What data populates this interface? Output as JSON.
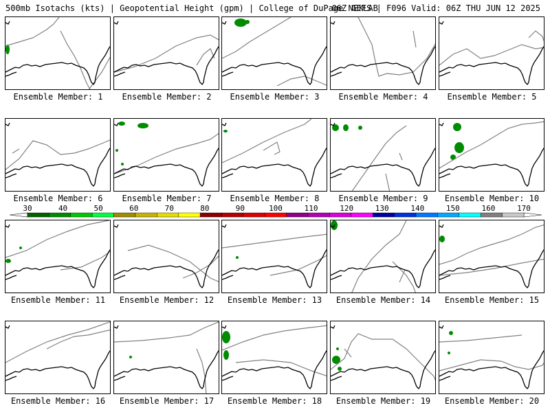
{
  "header": {
    "title": "500mb Isotachs (kts) | Geopotential Height (gpm) | College of DuPage NEXLAB",
    "run_info": "06Z GEFS | F096 Valid: 06Z THU JUN 12 2025"
  },
  "panel_label_prefix": "Ensemble Member: ",
  "members": [
    {
      "id": 1,
      "label": "Ensemble Member: 1"
    },
    {
      "id": 2,
      "label": "Ensemble Member: 2"
    },
    {
      "id": 3,
      "label": "Ensemble Member: 3"
    },
    {
      "id": 4,
      "label": "Ensemble Member: 4"
    },
    {
      "id": 5,
      "label": "Ensemble Member: 5"
    },
    {
      "id": 6,
      "label": "Ensemble Member: 6"
    },
    {
      "id": 7,
      "label": "Ensemble Member: 7"
    },
    {
      "id": 8,
      "label": "Ensemble Member: 8"
    },
    {
      "id": 9,
      "label": "Ensemble Member: 9"
    },
    {
      "id": 10,
      "label": "Ensemble Member: 10"
    },
    {
      "id": 11,
      "label": "Ensemble Member: 11"
    },
    {
      "id": 12,
      "label": "Ensemble Member: 12"
    },
    {
      "id": 13,
      "label": "Ensemble Member: 13"
    },
    {
      "id": 14,
      "label": "Ensemble Member: 14"
    },
    {
      "id": 15,
      "label": "Ensemble Member: 15"
    },
    {
      "id": 16,
      "label": "Ensemble Member: 16"
    },
    {
      "id": 17,
      "label": "Ensemble Member: 17"
    },
    {
      "id": 18,
      "label": "Ensemble Member: 18"
    },
    {
      "id": 19,
      "label": "Ensemble Member: 19"
    },
    {
      "id": 20,
      "label": "Ensemble Member: 20"
    }
  ],
  "colorbar": {
    "ticks": [
      "30",
      "40",
      "50",
      "60",
      "70",
      "80",
      "90",
      "100",
      "110",
      "120",
      "130",
      "140",
      "150",
      "160",
      "170"
    ],
    "colors": [
      "#006400",
      "#008c00",
      "#00c800",
      "#00ff3c",
      "#a08c00",
      "#c8b400",
      "#e6dc00",
      "#ffff00",
      "#8c0000",
      "#b40000",
      "#dc0000",
      "#ff0000",
      "#8c008c",
      "#b400b4",
      "#dc00dc",
      "#ff00ff",
      "#0000a0",
      "#0032dc",
      "#0078ff",
      "#00aaff",
      "#00ffff",
      "#808080",
      "#c8c8c8"
    ],
    "contour_color": "#808080",
    "coast_color": "#000000"
  }
}
